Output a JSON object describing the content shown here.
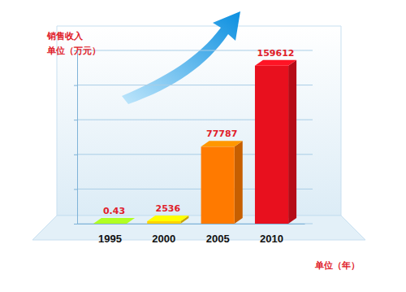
{
  "chart_data": {
    "type": "bar",
    "title": "销售收入",
    "y_label": "单位（万元）",
    "x_label": "单位（年）",
    "categories": [
      "1995",
      "2000",
      "2005",
      "2010"
    ],
    "values": [
      0.43,
      2536,
      77787,
      159612
    ],
    "colors": [
      "#8fd61c",
      "#ffd200",
      "#ff7a00",
      "#e8101e"
    ],
    "ylim": [
      0,
      175000
    ],
    "yticks": [
      0,
      35000,
      70000,
      105000,
      140000,
      175000
    ],
    "grid": true,
    "data_labels": true,
    "tick_labels": "x"
  }
}
